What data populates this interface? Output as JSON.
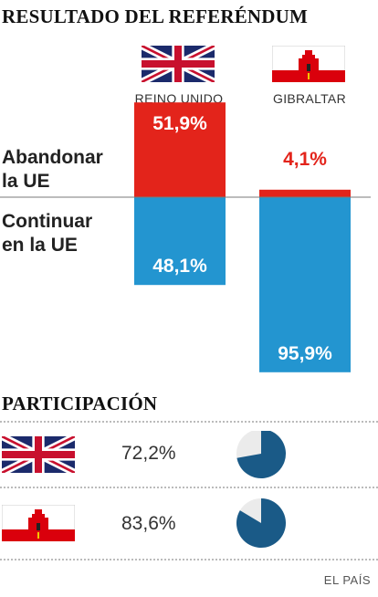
{
  "title": "RESULTADO DEL REFERÉNDUM",
  "row_labels": {
    "leave_line1": "Abandonar",
    "leave_line2": "la UE",
    "remain_line1": "Continuar",
    "remain_line2": "en la UE"
  },
  "countries": [
    "REINO UNIDO",
    "GIBRALTAR"
  ],
  "colors": {
    "leave": "#e3241b",
    "remain": "#2395d0",
    "axis": "#7a7a7a",
    "pie_fill": "#1a5a87",
    "pie_rest": "#ebebeb"
  },
  "chart_data": {
    "type": "bar",
    "categories": [
      "REINO UNIDO",
      "GIBRALTAR"
    ],
    "series": [
      {
        "name": "Abandonar la UE",
        "values": [
          51.9,
          4.1
        ],
        "labels": [
          "51,9%",
          "4,1%"
        ]
      },
      {
        "name": "Continuar en la UE",
        "values": [
          48.1,
          95.9
        ],
        "labels": [
          "48,1%",
          "95,9%"
        ]
      }
    ],
    "ylim": [
      0,
      100
    ]
  },
  "participation": {
    "title": "PARTICIPACIÓN",
    "rows": [
      {
        "flag": "uk-flag-icon",
        "value": 72.2,
        "label": "72,2%"
      },
      {
        "flag": "gibraltar-flag-icon",
        "value": 83.6,
        "label": "83,6%"
      }
    ]
  },
  "source": "EL PAÍS"
}
